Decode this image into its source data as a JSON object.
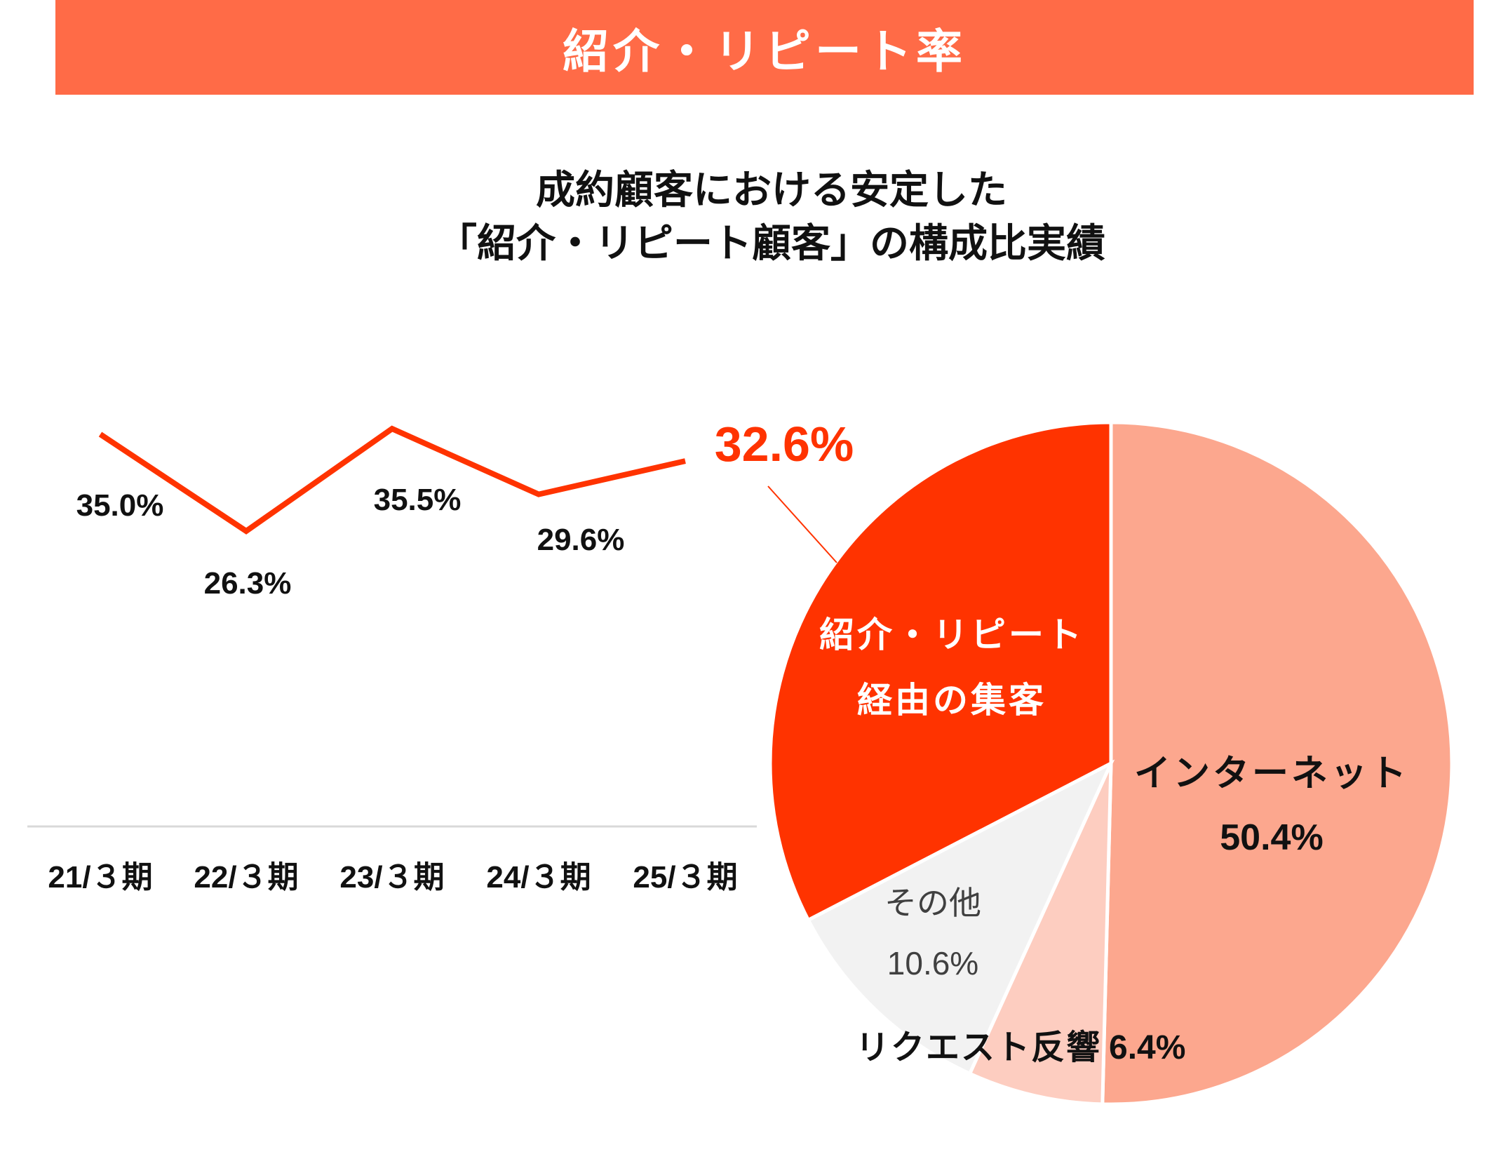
{
  "header": {
    "title": "紹介・リピート率"
  },
  "colors": {
    "header": "#FF6B47",
    "line": "#FF3300",
    "internet": "#FCA78E",
    "request": "#FDCDC0",
    "other": "#F2F2F2",
    "referral": "#FF3300"
  },
  "chart_data": [
    {
      "type": "line",
      "title": "成約顧客における安定した「紹介・リピート顧客」の構成比実績",
      "title_lines": [
        "成約顧客における安定した",
        "「紹介・リピート顧客」の構成比実績"
      ],
      "categories": [
        "21/３期",
        "22/３期",
        "23/３期",
        "24/３期",
        "25/３期"
      ],
      "values": [
        35.0,
        26.3,
        35.5,
        29.6,
        32.6
      ],
      "labels": [
        "35.0%",
        "26.3%",
        "35.5%",
        "29.6%",
        "32.6%"
      ],
      "ylabel": "",
      "xlabel": ""
    },
    {
      "type": "pie",
      "slices": [
        {
          "name": "インターネット",
          "value": 50.4,
          "label": "50.4%"
        },
        {
          "name": "リクエスト反響",
          "value": 6.4,
          "label": "6.4%"
        },
        {
          "name": "その他",
          "value": 10.6,
          "label": "10.6%"
        },
        {
          "name": "紹介・リピート経由の集客",
          "name_lines": [
            "紹介・リピート",
            "経由の集客"
          ],
          "value": 32.6,
          "label": "32.6%"
        }
      ]
    }
  ]
}
